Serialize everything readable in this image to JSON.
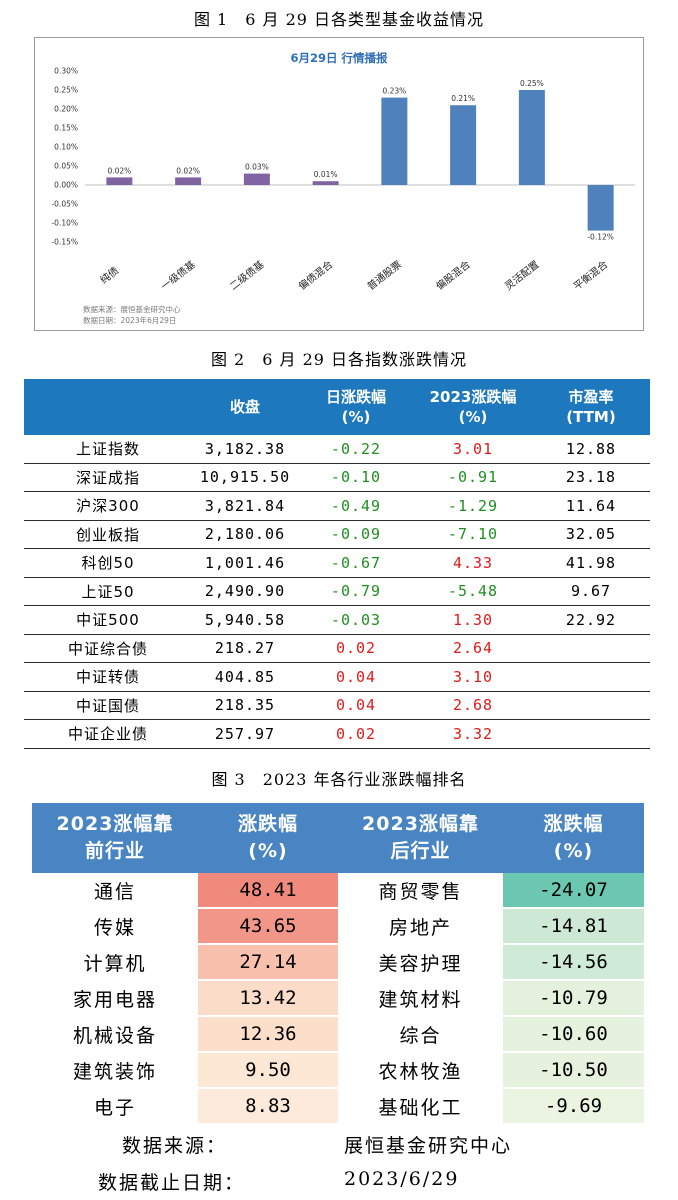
{
  "figure1": {
    "caption": "图 1　6 月 29 日各类型基金收益情况",
    "chart_data": {
      "type": "bar",
      "title": "6月29日  行情播报",
      "categories": [
        "纯债",
        "一级债基",
        "二级债基",
        "偏债混合",
        "普通股票",
        "偏股混合",
        "灵活配置",
        "平衡混合"
      ],
      "values": [
        0.02,
        0.02,
        0.03,
        0.01,
        0.23,
        0.21,
        0.25,
        -0.12
      ],
      "value_labels": [
        "0.02%",
        "0.02%",
        "0.03%",
        "0.01%",
        "0.23%",
        "0.21%",
        "0.25%",
        "-0.12%"
      ],
      "bar_colors": [
        "#8064a2",
        "#8064a2",
        "#8064a2",
        "#8064a2",
        "#4f81bd",
        "#4f81bd",
        "#4f81bd",
        "#4f81bd"
      ],
      "yticks": [
        "0.30%",
        "0.25%",
        "0.20%",
        "0.15%",
        "0.10%",
        "0.05%",
        "0.00%",
        "-0.05%",
        "-0.10%",
        "-0.15%"
      ],
      "ylim": [
        -0.15,
        0.3
      ],
      "grid": false
    },
    "source": "数据来源：展恒基金研究中心",
    "date": "数据日期：2023年6月29日"
  },
  "figure2": {
    "caption": "图 2　6 月 29 日各指数涨跌情况",
    "headers": {
      "close": "收盘",
      "daily_line1": "日涨跌幅",
      "daily_line2": "(%)",
      "ytd_line1": "2023涨跌幅",
      "ytd_line2": "(%)",
      "pe_line1": "市盈率",
      "pe_line2": "(TTM)"
    },
    "rows": [
      {
        "name": "上证指数",
        "close": "3,182.38",
        "daily": "-0.22",
        "ytd": "3.01",
        "pe": "12.88"
      },
      {
        "name": "深证成指",
        "close": "10,915.50",
        "daily": "-0.10",
        "ytd": "-0.91",
        "pe": "23.18"
      },
      {
        "name": "沪深300",
        "close": "3,821.84",
        "daily": "-0.49",
        "ytd": "-1.29",
        "pe": "11.64"
      },
      {
        "name": "创业板指",
        "close": "2,180.06",
        "daily": "-0.09",
        "ytd": "-7.10",
        "pe": "32.05"
      },
      {
        "name": "科创50",
        "close": "1,001.46",
        "daily": "-0.67",
        "ytd": "4.33",
        "pe": "41.98"
      },
      {
        "name": "上证50",
        "close": "2,490.90",
        "daily": "-0.79",
        "ytd": "-5.48",
        "pe": "9.67"
      },
      {
        "name": "中证500",
        "close": "5,940.58",
        "daily": "-0.03",
        "ytd": "1.30",
        "pe": "22.92"
      },
      {
        "name": "中证综合债",
        "close": "218.27",
        "daily": "0.02",
        "ytd": "2.64",
        "pe": ""
      },
      {
        "name": "中证转债",
        "close": "404.85",
        "daily": "0.04",
        "ytd": "3.10",
        "pe": ""
      },
      {
        "name": "中证国债",
        "close": "218.35",
        "daily": "0.04",
        "ytd": "2.68",
        "pe": ""
      },
      {
        "name": "中证企业债",
        "close": "257.97",
        "daily": "0.02",
        "ytd": "3.32",
        "pe": ""
      }
    ],
    "colors": {
      "positive": "#e01b1b",
      "negative": "#1f8f1f",
      "header_bg": "#1e78be"
    }
  },
  "figure3": {
    "caption": "图 3　2023 年各行业涨跌幅排名",
    "headers": {
      "top_line1": "2023涨幅靠",
      "top_line2": "前行业",
      "chg_line1": "涨跌幅",
      "chg_line2": "(%)",
      "bottom_line1": "2023涨幅靠",
      "bottom_line2": "后行业",
      "chg2_line1": "涨跌幅",
      "chg2_line2": "(%)"
    },
    "rows": [
      {
        "top": "通信",
        "top_chg": "48.41",
        "top_color": "#f08a7c",
        "bottom": "商贸零售",
        "bottom_chg": "-24.07",
        "bottom_color": "#6bc7b0"
      },
      {
        "top": "传媒",
        "top_chg": "43.65",
        "top_color": "#f3968a",
        "bottom": "房地产",
        "bottom_chg": "-14.81",
        "bottom_color": "#cde9d5"
      },
      {
        "top": "计算机",
        "top_chg": "27.14",
        "top_color": "#f9c0ad",
        "bottom": "美容护理",
        "bottom_chg": "-14.56",
        "bottom_color": "#cfead6"
      },
      {
        "top": "家用电器",
        "top_chg": "13.42",
        "top_color": "#fbdcc8",
        "bottom": "建筑材料",
        "bottom_chg": "-10.79",
        "bottom_color": "#e4f1dc"
      },
      {
        "top": "机械设备",
        "top_chg": "12.36",
        "top_color": "#fcdfcb",
        "bottom": "综合",
        "bottom_chg": "-10.60",
        "bottom_color": "#e5f2dd"
      },
      {
        "top": "建筑装饰",
        "top_chg": "9.50",
        "top_color": "#fde7d5",
        "bottom": "农林牧渔",
        "bottom_chg": "-10.50",
        "bottom_color": "#e6f2dd"
      },
      {
        "top": "电子",
        "top_chg": "8.83",
        "top_color": "#fdeada",
        "bottom": "基础化工",
        "bottom_chg": "-9.69",
        "bottom_color": "#eaf4e0"
      }
    ],
    "footer": {
      "source_label": "数据来源：",
      "source_value": "展恒基金研究中心",
      "date_label": "数据截止日期：",
      "date_value": "2023/6/29"
    },
    "header_bg": "#4a85c3"
  }
}
